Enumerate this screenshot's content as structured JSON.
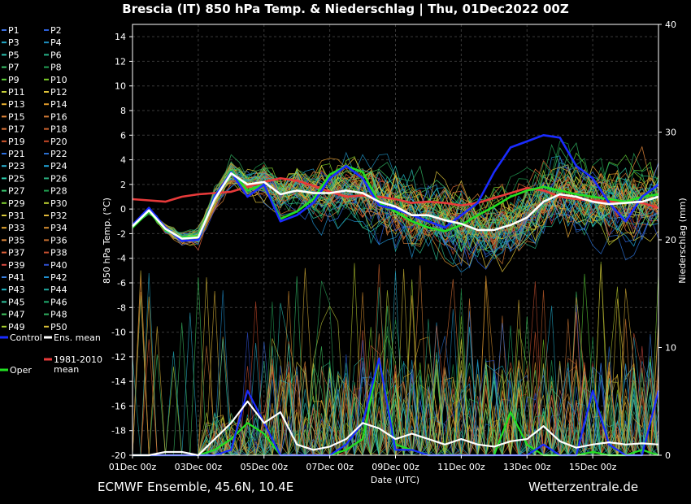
{
  "header": {
    "title": "Brescia  (IT)  850 hPa Temp. & Niederschlag | Thu, 01Dec2022 00Z"
  },
  "footer": {
    "left": "ECMWF Ensemble, 45.6N, 10.4E",
    "right": "Wetterzentrale.de"
  },
  "legend": {
    "members": [
      "P1",
      "P2",
      "P3",
      "P4",
      "P5",
      "P6",
      "P7",
      "P8",
      "P9",
      "P10",
      "P11",
      "P12",
      "P13",
      "P14",
      "P15",
      "P16",
      "P17",
      "P18",
      "P19",
      "P20",
      "P21",
      "P22",
      "P23",
      "P24",
      "P25",
      "P26",
      "P27",
      "P28",
      "P29",
      "P30",
      "P31",
      "P32",
      "P33",
      "P34",
      "P35",
      "P36",
      "P37",
      "P38",
      "P39",
      "P40",
      "P41",
      "P42",
      "P43",
      "P44",
      "P45",
      "P46",
      "P47",
      "P48",
      "P49",
      "P50"
    ],
    "member_colors": [
      "#3b6fe0",
      "#2c5fd8",
      "#22a9c9",
      "#1e8fc0",
      "#2bc1b0",
      "#27b38a",
      "#3cc46a",
      "#22a055",
      "#5fd23a",
      "#7ccf28",
      "#c8d23a",
      "#e0c33a",
      "#e8b030",
      "#e09a2a",
      "#e4873a",
      "#d27a35",
      "#e4783a",
      "#d0652f",
      "#d85a2f",
      "#c84828",
      "#2c6fe0",
      "#2a6fd0",
      "#2ab0d0",
      "#1fa3d8",
      "#2cd0b0",
      "#2ab080",
      "#38c870",
      "#20a050",
      "#7fd030",
      "#bcd030",
      "#d8c83a",
      "#e0b83a",
      "#e8a830",
      "#d89030",
      "#e48a3a",
      "#c87030",
      "#e0603a",
      "#c85030",
      "#d84a40",
      "#3050d0",
      "#3a80e0",
      "#2090d0",
      "#20b8c8",
      "#20a8a0",
      "#30c8a0",
      "#20b070",
      "#40c860",
      "#30b060",
      "#a8d030",
      "#d8c038"
    ],
    "control_label": "Control",
    "mean_label": "Ens. mean",
    "clim_label_line1": "1981-2010",
    "clim_label_line2": "mean",
    "oper_label": "Oper"
  },
  "chart_data": {
    "type": "line",
    "xlabel": "Date (UTC)",
    "ylabel": "850 hPa Temp. (°C)",
    "ylabel_right": "Niederschlag (mm)",
    "ylim": [
      -20,
      15
    ],
    "ylim_right": [
      0,
      40
    ],
    "xlim_days": [
      0,
      16
    ],
    "x_ticks": [
      "01Dec 00z",
      "03Dec 00z",
      "05Dec 00z",
      "07Dec 00z",
      "09Dec 00z",
      "11Dec 00z",
      "13Dec 00z",
      "15Dec 00z"
    ],
    "y_ticks": [
      14,
      12,
      10,
      8,
      6,
      4,
      2,
      0,
      -2,
      -4,
      -6,
      -8,
      -10,
      -12,
      -14,
      -16,
      -18,
      -20
    ],
    "y_ticks_right": [
      40,
      30,
      20,
      10,
      0
    ],
    "grid": true,
    "legend_position": "left",
    "colors": {
      "control": "#1a2cff",
      "ens_mean": "#ffffff",
      "clim_mean": "#e83a3a",
      "oper": "#22e022"
    },
    "series": [
      {
        "name": "Control",
        "role": "control",
        "x": [
          0,
          0.5,
          1,
          1.5,
          2,
          2.5,
          3,
          3.5,
          4,
          4.5,
          5,
          5.5,
          6,
          6.5,
          7,
          7.5,
          8,
          8.5,
          9,
          9.5,
          10,
          10.5,
          11,
          11.5,
          12,
          12.5,
          13,
          13.5,
          14,
          14.5,
          15,
          15.5,
          16
        ],
        "temp": [
          -1.3,
          0.1,
          -1.5,
          -2.6,
          -2.5,
          1.0,
          3.0,
          1.0,
          2.0,
          -1.0,
          -0.5,
          0.5,
          2.5,
          3.5,
          2.5,
          0.3,
          0,
          -0.5,
          -1.0,
          -1.5,
          -0.5,
          0.5,
          3.0,
          5.0,
          5.5,
          6.0,
          5.8,
          3.5,
          2.5,
          0.5,
          -1.0,
          1.0,
          2.0
        ],
        "precip": [
          0,
          0,
          0,
          0,
          0,
          0,
          0.5,
          6,
          3,
          0,
          0,
          0,
          0,
          1,
          3,
          9,
          0.5,
          0.5,
          0,
          0,
          0,
          0,
          0,
          0,
          0,
          1,
          0,
          0,
          6,
          1,
          0,
          0,
          6
        ]
      },
      {
        "name": "Ens. mean",
        "role": "mean",
        "x": [
          0,
          0.5,
          1,
          1.5,
          2,
          2.5,
          3,
          3.5,
          4,
          4.5,
          5,
          5.5,
          6,
          6.5,
          7,
          7.5,
          8,
          8.5,
          9,
          9.5,
          10,
          10.5,
          11,
          11.5,
          12,
          12.5,
          13,
          13.5,
          14,
          14.5,
          15,
          15.5,
          16
        ],
        "temp": [
          -1.4,
          -0.1,
          -1.6,
          -2.4,
          -2.3,
          0.8,
          2.9,
          2.0,
          2.2,
          1.2,
          1.5,
          1.3,
          1.3,
          1.5,
          1.3,
          0.6,
          0.2,
          -0.5,
          -0.5,
          -0.9,
          -1.2,
          -1.7,
          -1.7,
          -1.3,
          -0.7,
          0.6,
          1.2,
          1.0,
          0.6,
          0.4,
          0.5,
          0.6,
          1.0
        ],
        "precip": [
          0,
          0,
          0.3,
          0.3,
          0,
          1.5,
          3,
          5,
          3,
          4,
          1,
          0.5,
          0.8,
          1.5,
          3,
          2.5,
          1.5,
          2,
          1.5,
          1,
          1.5,
          1,
          0.8,
          1.3,
          1.5,
          2.7,
          1.3,
          0.7,
          1,
          1.2,
          1,
          1.1,
          1
        ]
      },
      {
        "name": "1981-2010 mean",
        "role": "clim",
        "x": [
          0,
          0.5,
          1,
          1.5,
          2,
          2.5,
          3,
          3.5,
          4,
          4.5,
          5,
          5.5,
          6,
          6.5,
          7,
          7.5,
          8,
          8.5,
          9,
          9.5,
          10,
          10.5,
          11,
          11.5,
          12,
          12.5,
          13,
          13.5,
          14,
          14.5,
          15,
          15.5,
          16
        ],
        "temp": [
          0.8,
          0.7,
          0.6,
          1.0,
          1.2,
          1.3,
          1.4,
          1.8,
          2.2,
          2.5,
          2.3,
          1.9,
          1.4,
          1.0,
          1.1,
          1.0,
          0.8,
          0.5,
          0.6,
          0.5,
          0.3,
          0.5,
          0.9,
          1.3,
          1.7,
          1.5,
          1.0,
          0.8,
          0.7,
          0.6,
          0.6,
          0.5,
          0.1
        ]
      },
      {
        "name": "Oper",
        "role": "oper",
        "x": [
          0,
          0.5,
          1,
          1.5,
          2,
          2.5,
          3,
          3.5,
          4,
          4.5,
          5,
          5.5,
          6,
          6.5,
          7,
          7.5,
          8,
          8.5,
          9,
          9.5,
          10,
          10.5,
          11,
          11.5,
          12,
          12.5,
          13,
          13.5,
          14,
          14.5,
          15,
          15.5,
          16
        ],
        "temp": [
          -1.5,
          -0.2,
          -1.7,
          -2.3,
          -2.2,
          0.9,
          3.1,
          1.5,
          2.0,
          -0.8,
          -0.2,
          0.8,
          2.8,
          3.5,
          3.0,
          0.5,
          -0.2,
          -1.0,
          -1.5,
          -1.8,
          -1.3,
          -0.5,
          0.2,
          1.0,
          1.5,
          1.8,
          1.5,
          1.2,
          1.0,
          0.8,
          0.6,
          1.0,
          1.2
        ],
        "precip": [
          0,
          0,
          0,
          0,
          0,
          0.5,
          1.5,
          3,
          2,
          0,
          0,
          0,
          0,
          0.5,
          1.5,
          9,
          1,
          0.5,
          0,
          0,
          0,
          0,
          0,
          4,
          1,
          0,
          0,
          0,
          0.3,
          0,
          0,
          0.5,
          0
        ]
      }
    ]
  }
}
